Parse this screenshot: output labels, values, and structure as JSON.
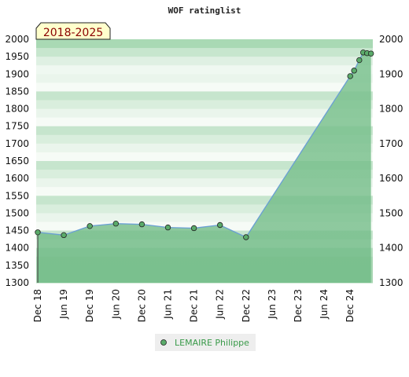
{
  "chart_data": {
    "type": "area",
    "title": "WOF ratinglist",
    "badge": "2018-2025",
    "y_ticks": [
      1300,
      1350,
      1400,
      1450,
      1500,
      1550,
      1600,
      1650,
      1700,
      1750,
      1800,
      1850,
      1900,
      1950,
      2000
    ],
    "right_y_ticks": [
      1300,
      1400,
      1500,
      1600,
      1700,
      1800,
      1900,
      2000
    ],
    "ylim": [
      1300,
      2000
    ],
    "x_ticks": [
      "Dec 18",
      "Jun 19",
      "Dec 19",
      "Jun 20",
      "Dec 20",
      "Jun 21",
      "Dec 21",
      "Jun 22",
      "Dec 22",
      "Jun 23",
      "Dec 23",
      "Jun 24",
      "Dec 24"
    ],
    "series": [
      {
        "name": "LEMAIRE Philippe",
        "x": [
          0,
          1,
          2,
          3,
          4,
          5,
          6,
          7,
          8,
          12,
          12.15,
          12.35,
          12.5,
          12.65,
          12.8
        ],
        "values": [
          1445,
          1437,
          1463,
          1470,
          1468,
          1459,
          1457,
          1466,
          1431,
          1894,
          1910,
          1940,
          1962,
          1960,
          1959
        ]
      }
    ],
    "colors": {
      "line": "#6a9fd4",
      "marker": "#5aab6a",
      "legend_text": "#3a9a4a"
    }
  }
}
